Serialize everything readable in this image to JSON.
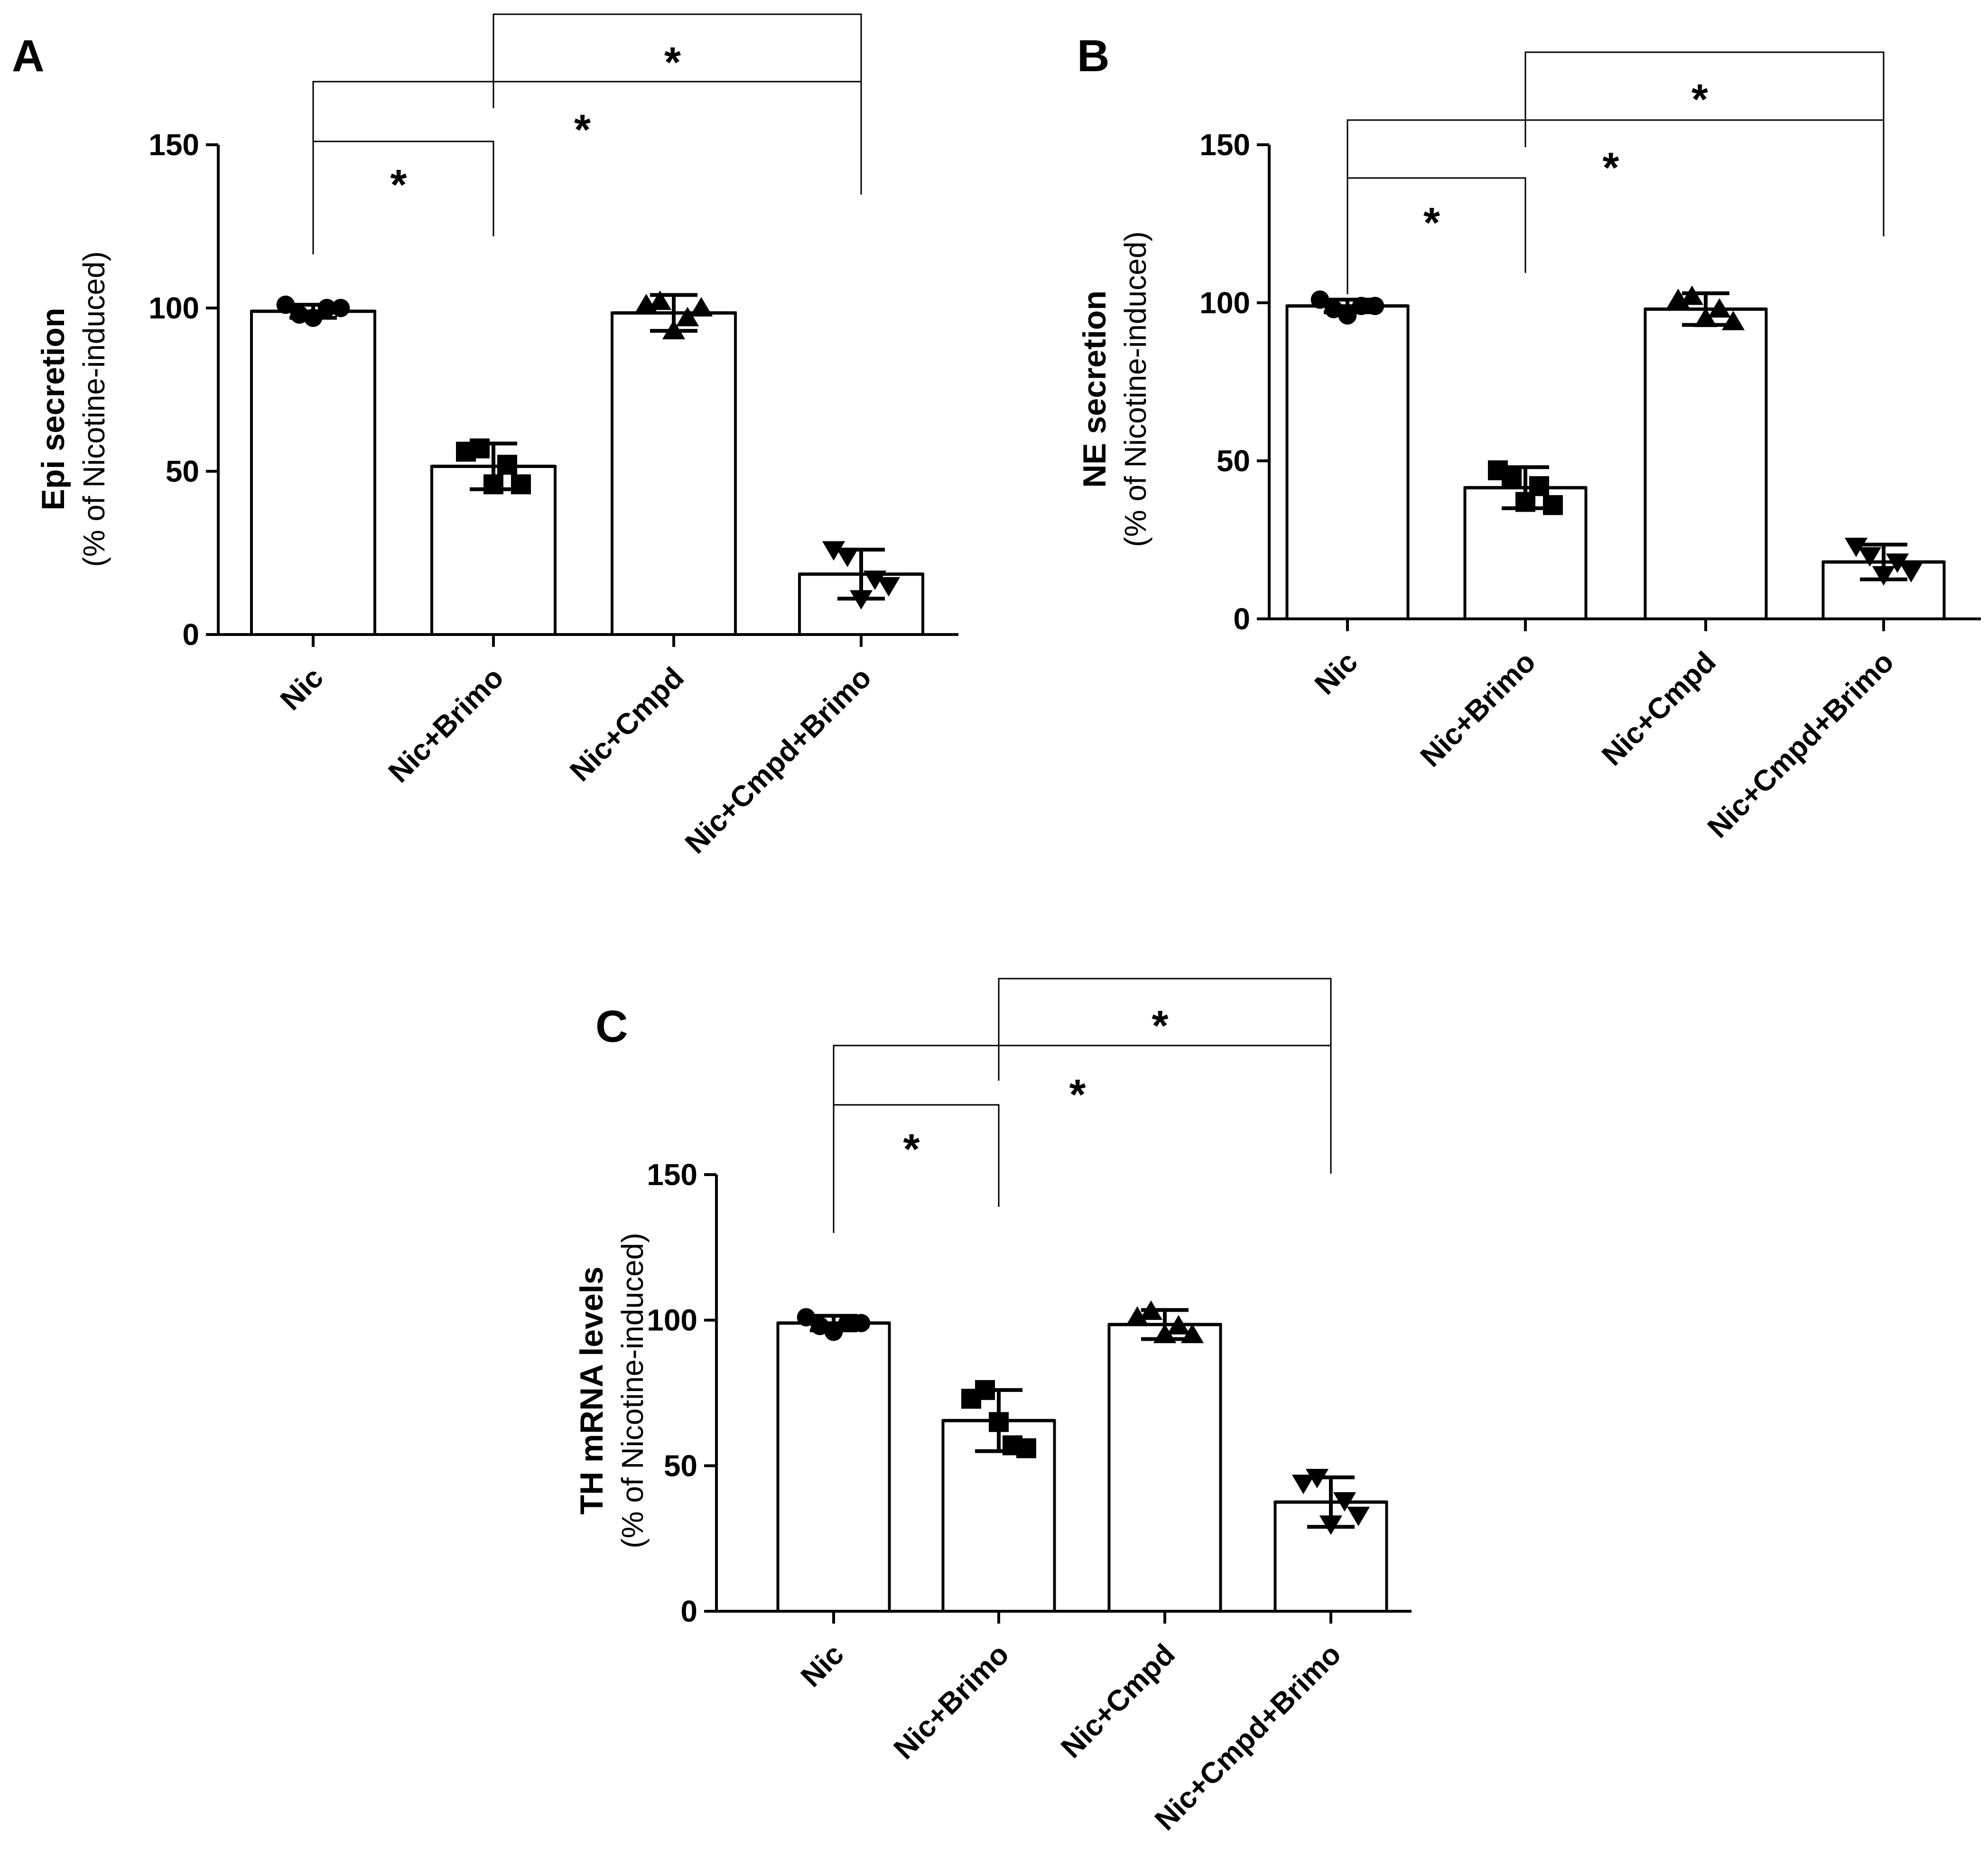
{
  "chart_data": [
    {
      "panel": "A",
      "type": "bar",
      "categories": [
        "Nic",
        "Nic+Brimo",
        "Nic+Cmpd",
        "Nic+Cmpd+Brimo"
      ],
      "values": [
        99,
        51.5,
        98.5,
        18.5
      ],
      "sd": [
        2,
        7,
        5.5,
        7.5
      ],
      "points": [
        [
          101,
          98,
          97,
          100,
          100
        ],
        [
          56,
          57,
          46,
          52,
          46
        ],
        [
          101,
          102,
          93,
          97,
          100
        ],
        [
          26,
          24,
          11,
          17,
          15
        ]
      ],
      "markers": [
        "circle",
        "square",
        "triangle-up",
        "triangle-down"
      ],
      "ylim": [
        0,
        150
      ],
      "yticks": [
        0,
        50,
        100,
        150
      ],
      "ylabel": "Epi secretion",
      "ylabel_sub": "(% of Nicotine-induced)",
      "significance": [
        {
          "from": 0,
          "to": 1,
          "label": "*"
        },
        {
          "from": 0,
          "to": 3,
          "label": "*"
        },
        {
          "from": 1,
          "to": 3,
          "label": "*"
        }
      ]
    },
    {
      "panel": "B",
      "type": "bar",
      "categories": [
        "Nic",
        "Nic+Brimo",
        "Nic+Cmpd",
        "Nic+Cmpd+Brimo"
      ],
      "values": [
        99,
        41.5,
        98,
        18
      ],
      "sd": [
        2,
        6.5,
        5,
        5.5
      ],
      "points": [
        [
          101,
          98,
          96,
          99,
          99
        ],
        [
          47,
          45,
          37,
          42,
          36
        ],
        [
          101,
          102,
          95,
          98,
          94
        ],
        [
          23,
          20,
          14,
          18,
          15
        ]
      ],
      "markers": [
        "circle",
        "square",
        "triangle-up",
        "triangle-down"
      ],
      "ylim": [
        0,
        150
      ],
      "yticks": [
        0,
        50,
        100,
        150
      ],
      "ylabel": "NE secretion",
      "ylabel_sub": "(% of Nicotine-induced)",
      "significance": [
        {
          "from": 0,
          "to": 1,
          "label": "*"
        },
        {
          "from": 0,
          "to": 3,
          "label": "*"
        },
        {
          "from": 1,
          "to": 3,
          "label": "*"
        }
      ]
    },
    {
      "panel": "C",
      "type": "bar",
      "categories": [
        "Nic",
        "Nic+Brimo",
        "Nic+Cmpd",
        "Nic+Cmpd+Brimo"
      ],
      "values": [
        99,
        65.5,
        98.5,
        37.5
      ],
      "sd": [
        2.5,
        10.5,
        5,
        8.5
      ],
      "points": [
        [
          101,
          98,
          96,
          99,
          99
        ],
        [
          73,
          76,
          65,
          57,
          56
        ],
        [
          101,
          103,
          95,
          98,
          95
        ],
        [
          44,
          46,
          30,
          38,
          33
        ]
      ],
      "markers": [
        "circle",
        "square",
        "triangle-up",
        "triangle-down"
      ],
      "ylim": [
        0,
        150
      ],
      "yticks": [
        0,
        50,
        100,
        150
      ],
      "ylabel": "TH mRNA levels",
      "ylabel_sub": "(% of Nicotine-induced)",
      "significance": [
        {
          "from": 0,
          "to": 1,
          "label": "*"
        },
        {
          "from": 0,
          "to": 3,
          "label": "*"
        },
        {
          "from": 1,
          "to": 3,
          "label": "*"
        }
      ]
    }
  ]
}
